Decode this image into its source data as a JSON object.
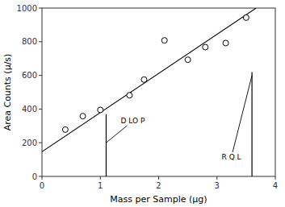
{
  "chart_data": {
    "type": "scatter",
    "xlabel": "Mass per Sample (μg)",
    "ylabel": "Area Counts (μ/s)",
    "xlim": [
      0,
      4
    ],
    "ylim": [
      0,
      1000
    ],
    "xticks": [
      0,
      1,
      2,
      3,
      4
    ],
    "yticks": [
      0,
      200,
      400,
      600,
      800,
      1000
    ],
    "grid": false,
    "series": [
      {
        "type": "scatter",
        "marker": "circle",
        "color": "#000000",
        "x": [
          0.4,
          0.7,
          1.0,
          1.5,
          1.75,
          2.1,
          2.5,
          2.8,
          3.15,
          3.5
        ],
        "values": [
          278,
          358,
          395,
          482,
          575,
          808,
          693,
          768,
          792,
          943
        ]
      },
      {
        "type": "line",
        "color": "#000000",
        "x": [
          0.0,
          3.67
        ],
        "values": [
          146.58,
          999.5247
        ]
      },
      {
        "type": "line",
        "color": "#000000",
        "x": [
          1.1,
          1.1
        ],
        "values": [
          0,
          370
        ]
      },
      {
        "type": "line",
        "color": "#000000",
        "x": [
          3.6,
          3.6
        ],
        "values": [
          0,
          620
        ]
      }
    ],
    "annotations": [
      {
        "text": "D LO P",
        "x": 1.35,
        "y": 330,
        "arrow_x": 1.1,
        "arrow_y": 200,
        "color": "#000000"
      },
      {
        "text": "R Q L",
        "x": 3.08,
        "y": 115,
        "arrow_x": 3.6,
        "arrow_y": 600,
        "color": "#000000"
      }
    ]
  }
}
